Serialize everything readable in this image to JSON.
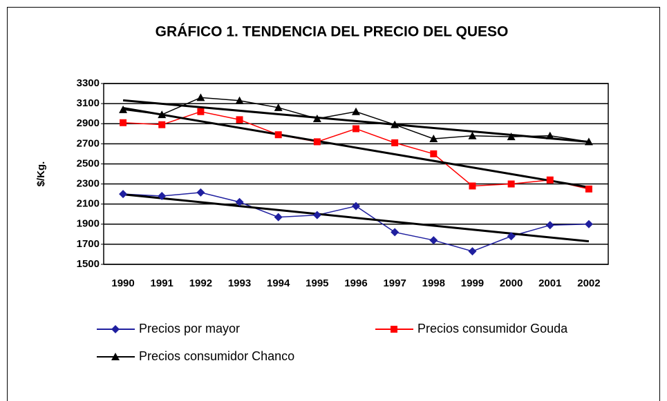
{
  "chart_data": {
    "type": "line",
    "title": "GRÁFICO 1. TENDENCIA DEL PRECIO DEL QUESO",
    "y_label": "$/Kg.",
    "categories": [
      "1990",
      "1991",
      "1992",
      "1993",
      "1994",
      "1995",
      "1996",
      "1997",
      "1998",
      "1999",
      "2000",
      "2001",
      "2002"
    ],
    "series": [
      {
        "name": "Precios por mayor",
        "color": "#1f1f9f",
        "marker": "diamond",
        "values": [
          2200,
          2180,
          2215,
          2120,
          1970,
          1990,
          2080,
          1820,
          1740,
          1630,
          1780,
          1890,
          1900
        ]
      },
      {
        "name": "Precios consumidor Gouda",
        "color": "#ff0000",
        "marker": "square",
        "values": [
          2910,
          2890,
          3020,
          2940,
          2790,
          2720,
          2850,
          2710,
          2600,
          2280,
          2300,
          2340,
          2250
        ]
      },
      {
        "name": "Precios consumidor Chanco",
        "color": "#000000",
        "marker": "triangle",
        "values": [
          3040,
          2990,
          3160,
          3130,
          3060,
          2950,
          3020,
          2890,
          2750,
          2780,
          2770,
          2780,
          2720
        ]
      }
    ],
    "ylim": [
      1500,
      3300
    ],
    "yticks": [
      1500,
      1700,
      1900,
      2100,
      2300,
      2500,
      2700,
      2900,
      3100,
      3300
    ],
    "grid": true,
    "trendline": true,
    "legend": "bottom"
  }
}
